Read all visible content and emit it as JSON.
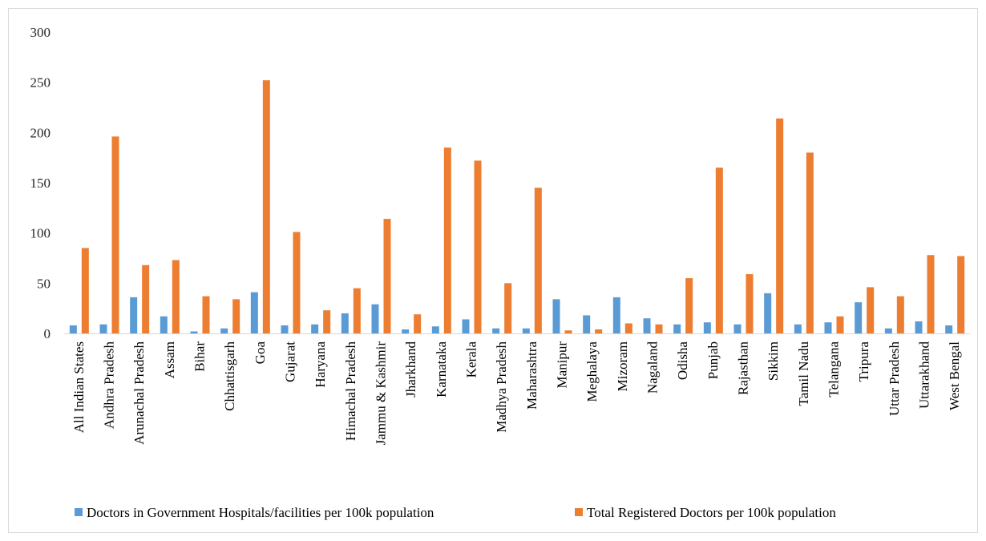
{
  "chart_data": {
    "type": "bar",
    "title": "",
    "xlabel": "",
    "ylabel": "",
    "ylim": [
      0,
      300
    ],
    "yticks": [
      0,
      50,
      100,
      150,
      200,
      250,
      300
    ],
    "grid": false,
    "legend_position": "bottom",
    "categories": [
      "All Indian States",
      "Andhra Pradesh",
      "Arunachal Pradesh",
      "Assam",
      "Bihar",
      "Chhattisgarh",
      "Goa",
      "Gujarat",
      "Haryana",
      "Himachal Pradesh",
      "Jammu & Kashmir",
      "Jharkhand",
      "Karnataka",
      "Kerala",
      "Madhya Pradesh",
      "Maharashtra",
      "Manipur",
      "Meghalaya",
      "Mizoram",
      "Nagaland",
      "Odisha",
      "Punjab",
      "Rajasthan",
      "Sikkim",
      "Tamil Nadu",
      "Telangana",
      "Tripura",
      "Uttar Pradesh",
      "Uttarakhand",
      "West Bengal"
    ],
    "series": [
      {
        "name": "Doctors in Government Hospitals/facilities per 100k population",
        "color": "#5b9bd5",
        "values": [
          8,
          9,
          36,
          17,
          2,
          5,
          41,
          8,
          9,
          20,
          29,
          4,
          7,
          14,
          5,
          5,
          34,
          18,
          36,
          15,
          9,
          11,
          9,
          40,
          9,
          11,
          31,
          5,
          12,
          8
        ]
      },
      {
        "name": "Total Registered Doctors per 100k population",
        "color": "#ed7d31",
        "values": [
          85,
          196,
          68,
          73,
          37,
          34,
          252,
          101,
          23,
          45,
          114,
          19,
          185,
          172,
          50,
          145,
          3,
          4,
          10,
          9,
          55,
          165,
          59,
          214,
          180,
          17,
          46,
          37,
          78,
          77
        ]
      }
    ]
  }
}
